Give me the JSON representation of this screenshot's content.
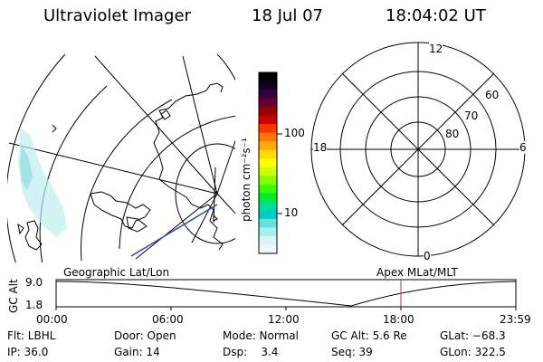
{
  "header": {
    "title": "Ultraviolet Imager",
    "date": "18 Jul 07",
    "time": "18:04:02 UT"
  },
  "colorbar": {
    "unit_label": "photon cm⁻²s⁻¹",
    "tick_labels": [
      "100",
      "10"
    ],
    "colors": [
      "#000000",
      "#120020",
      "#33003f",
      "#660033",
      "#990000",
      "#cc0000",
      "#ff3300",
      "#ff7700",
      "#ffaa00",
      "#ffdd00",
      "#ffff00",
      "#ccff00",
      "#88ff00",
      "#33ff00",
      "#00ee33",
      "#00dd99",
      "#00cccc",
      "#66e0e0",
      "#aaeeee",
      "#d9f4f4",
      "#eef9f9"
    ]
  },
  "polar_plot": {
    "hour_labels": {
      "top": "12",
      "left": "18",
      "right": "6",
      "bottom": "0"
    },
    "lat_labels": [
      "60",
      "70",
      "80"
    ]
  },
  "timeline": {
    "left_title": "Geographic Lat/Lon",
    "right_title": "Apex  MLat/MLT",
    "axis_label": "GC Alt",
    "y_ticks": [
      "9.0",
      "1.8"
    ],
    "x_ticks": [
      "00:00",
      "06:00",
      "12:00",
      "18:00",
      "23:59"
    ],
    "marker_color": "#cc3333"
  },
  "info": {
    "flt": "Flt: LBHL",
    "ip": "IP: 36.0",
    "door": "Door: Open",
    "gain": "Gain: 14",
    "mode": "Mode: Normal",
    "dsp": "Dsp:    3.4",
    "gc_alt": "GC Alt: 5.6 Re",
    "seq": "Seq: 39",
    "glat": "GLat: −68.3",
    "glon": "GLon: 322.5"
  }
}
